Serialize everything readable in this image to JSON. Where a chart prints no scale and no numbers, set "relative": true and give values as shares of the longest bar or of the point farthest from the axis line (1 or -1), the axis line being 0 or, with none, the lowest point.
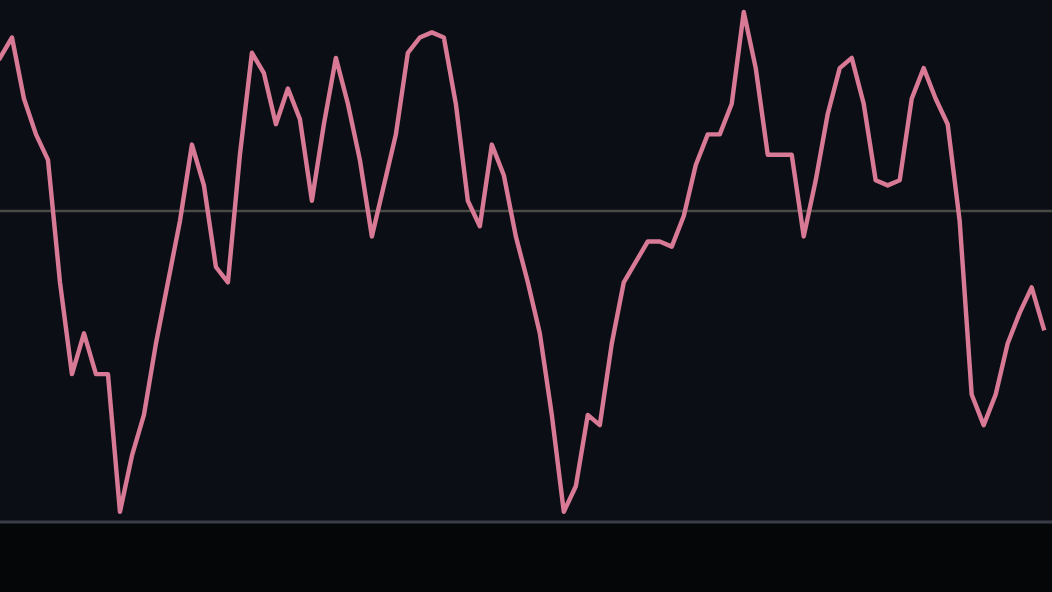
{
  "chart_data": {
    "type": "line",
    "relative": true,
    "legend": false,
    "marker": "none",
    "line_style": "solid",
    "categories": [
      null,
      null,
      null,
      null,
      null,
      null,
      null,
      null,
      null,
      null,
      null,
      null,
      null,
      null,
      null,
      null,
      null,
      null,
      null,
      null,
      null,
      null,
      null,
      null,
      null,
      null,
      null,
      null,
      null,
      null,
      null,
      null,
      null,
      null,
      null,
      null,
      null,
      null,
      null,
      null,
      null,
      null,
      null,
      null,
      null,
      null,
      null,
      null,
      null,
      null,
      null,
      null,
      null,
      null,
      null,
      null,
      null,
      null,
      null,
      null,
      null,
      null,
      null,
      null,
      null,
      null,
      null,
      null,
      null,
      null,
      null,
      null,
      null,
      null,
      null,
      null,
      null,
      null,
      null,
      null,
      null,
      null,
      null,
      null,
      null,
      null,
      null,
      null
    ],
    "series": [
      {
        "color": "#d87a95",
        "values": [
          0.91,
          0.95,
          0.83,
          0.76,
          0.71,
          0.47,
          0.29,
          0.37,
          0.29,
          0.29,
          0.02,
          0.13,
          0.21,
          0.35,
          0.47,
          0.59,
          0.74,
          0.66,
          0.5,
          0.47,
          0.72,
          0.92,
          0.88,
          0.78,
          0.85,
          0.79,
          0.63,
          0.78,
          0.91,
          0.82,
          0.71,
          0.56,
          0.66,
          0.76,
          0.92,
          0.95,
          0.96,
          0.95,
          0.82,
          0.63,
          0.58,
          0.74,
          0.68,
          0.56,
          0.47,
          0.37,
          0.21,
          0.02,
          0.07,
          0.21,
          0.19,
          0.35,
          0.47,
          0.51,
          0.55,
          0.55,
          0.54,
          0.6,
          0.7,
          0.76,
          0.76,
          0.82,
          1.0,
          0.89,
          0.72,
          0.72,
          0.72,
          0.56,
          0.67,
          0.8,
          0.89,
          0.91,
          0.82,
          0.67,
          0.66,
          0.67,
          0.83,
          0.89,
          0.83,
          0.78,
          0.59,
          0.25,
          0.19,
          0.25,
          0.35,
          0.41,
          0.46,
          0.38
        ]
      }
    ],
    "ref_lines": [
      {
        "axis": "y",
        "value": 0.61,
        "color": "#4a4a44",
        "line_style": "solid"
      }
    ]
  }
}
